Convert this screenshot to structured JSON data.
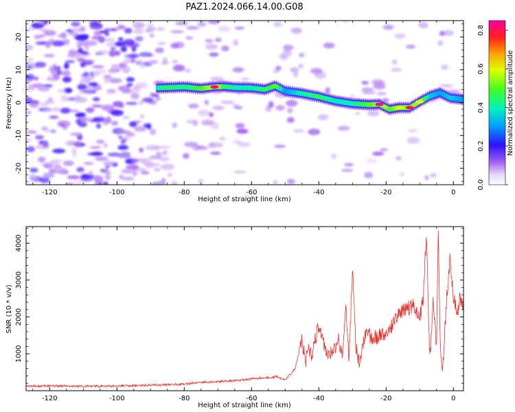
{
  "title": "PAZ1.2024.066.14.00.G08",
  "chart_data": [
    {
      "type": "heatmap",
      "xlabel": "Height of straight line (km)",
      "ylabel": "Frequency (Hz)",
      "xlim": [
        -127,
        3
      ],
      "ylim": [
        -25,
        25
      ],
      "xticks": [
        -120,
        -100,
        -80,
        -60,
        -40,
        -20,
        0
      ],
      "yticks": [
        -20,
        -10,
        0,
        10,
        20
      ],
      "colorbar": {
        "label": "Normalized spectral amplitude",
        "range": [
          0,
          0.85
        ],
        "ticks": [
          0.0,
          0.2,
          0.4,
          0.6,
          0.8
        ],
        "colormap": "rainbow (white-purple-blue-cyan-green-yellow-red-magenta)"
      },
      "ridge": {
        "description": "dominant frequency track",
        "x": [
          -88,
          -85,
          -80,
          -75,
          -71,
          -68,
          -65,
          -60,
          -56,
          -53,
          -50,
          -45,
          -40,
          -35,
          -30,
          -25,
          -22,
          -19,
          -16,
          -13,
          -10,
          -7,
          -4,
          -1,
          3
        ],
        "y": [
          4.5,
          4.6,
          4.8,
          4.3,
          4.8,
          4.9,
          4.6,
          4.5,
          4.0,
          5.1,
          3.5,
          2.8,
          1.8,
          0.5,
          -0.3,
          -0.6,
          -0.5,
          -2.0,
          -1.5,
          -1.5,
          0.3,
          2.0,
          3.0,
          1.5,
          1.0
        ],
        "amplitude": [
          0.4,
          0.45,
          0.42,
          0.5,
          0.82,
          0.45,
          0.4,
          0.4,
          0.45,
          0.5,
          0.3,
          0.4,
          0.45,
          0.38,
          0.4,
          0.5,
          0.85,
          0.5,
          0.6,
          0.8,
          0.6,
          0.35,
          0.3,
          0.35,
          0.3
        ]
      }
    },
    {
      "type": "line",
      "xlabel": "Height of straight line (km)",
      "ylabel": "SNR (10 * v/v)",
      "xlim": [
        -127,
        3
      ],
      "ylim": [
        0,
        4450
      ],
      "xticks": [
        -120,
        -100,
        -80,
        -60,
        -40,
        -20,
        0
      ],
      "yticks": [
        1000,
        2000,
        3000,
        4000
      ],
      "color": "#e8302b",
      "x": [
        -127,
        -120,
        -110,
        -100,
        -90,
        -80,
        -75,
        -70,
        -65,
        -60,
        -56,
        -52,
        -50,
        -47,
        -45,
        -44,
        -43,
        -42,
        -40,
        -38,
        -36,
        -34,
        -33,
        -32,
        -31,
        -30,
        -29,
        -28,
        -26,
        -24,
        -22,
        -20,
        -18,
        -16,
        -14,
        -12,
        -10,
        -9,
        -8,
        -7,
        -6,
        -5,
        -4.5,
        -4,
        -3.5,
        -3,
        -2,
        -1,
        0,
        1,
        2,
        3
      ],
      "y": [
        120,
        130,
        120,
        130,
        150,
        180,
        230,
        250,
        270,
        320,
        350,
        380,
        280,
        600,
        1400,
        750,
        1100,
        1000,
        1800,
        1050,
        1000,
        1400,
        900,
        2400,
        800,
        3300,
        1200,
        800,
        1600,
        1400,
        1500,
        1450,
        1800,
        2100,
        2200,
        2300,
        2000,
        2500,
        4200,
        800,
        2400,
        1200,
        4400,
        1500,
        600,
        900,
        2500,
        3600,
        2600,
        2100,
        2500,
        2300
      ]
    }
  ]
}
